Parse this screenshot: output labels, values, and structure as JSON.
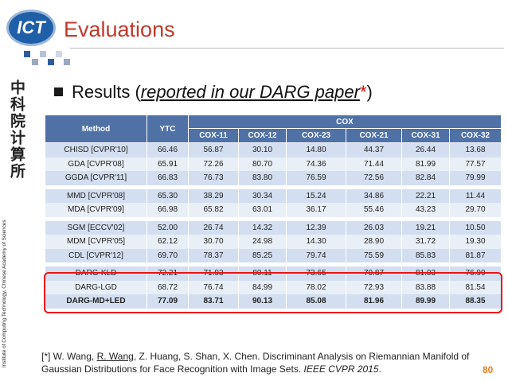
{
  "header": {
    "logo": "ICT",
    "title": "Evaluations"
  },
  "sidebar": {
    "chinese": "中科院计算所",
    "institute": "Institute of Computing Technology, Chinese Academy of Sciences"
  },
  "bullet": {
    "text": "Results (",
    "link": "reported in our DARG paper",
    "star": "*",
    "close": ")"
  },
  "table": {
    "header": [
      "Method",
      "YTC",
      "COX"
    ],
    "subheader": [
      "COX-11",
      "COX-12",
      "COX-23",
      "COX-21",
      "COX-31",
      "COX-32"
    ],
    "groups": [
      {
        "rows": [
          [
            "CHISD [CVPR'10]",
            "66.46",
            "56.87",
            "30.10",
            "14.80",
            "44.37",
            "26.44",
            "13.68"
          ],
          [
            "GDA [CVPR'08]",
            "65.91",
            "72.26",
            "80.70",
            "74.36",
            "71.44",
            "81.99",
            "77.57"
          ],
          [
            "GGDA [CVPR'11]",
            "66.83",
            "76.73",
            "83.80",
            "76.59",
            "72.56",
            "82.84",
            "79.99"
          ]
        ]
      },
      {
        "rows": [
          [
            "MMD [CVPR'08]",
            "65.30",
            "38.29",
            "30.34",
            "15.24",
            "34.86",
            "22.21",
            "11.44"
          ],
          [
            "MDA [CVPR'09]",
            "66.98",
            "65.82",
            "63.01",
            "36.17",
            "55.46",
            "43.23",
            "29.70"
          ]
        ]
      },
      {
        "rows": [
          [
            "SGM [ECCV'02]",
            "52.00",
            "26.74",
            "14.32",
            "12.39",
            "26.03",
            "19.21",
            "10.50"
          ],
          [
            "MDM [CVPR'05]",
            "62.12",
            "30.70",
            "24.98",
            "14.30",
            "28.90",
            "31.72",
            "19.30"
          ],
          [
            "CDL [CVPR'12]",
            "69.70",
            "78.37",
            "85.25",
            "79.74",
            "75.59",
            "85.83",
            "81.87"
          ]
        ]
      },
      {
        "rows": [
          [
            "DARG-KLD",
            "72.21",
            "71.93",
            "80.11",
            "73.65",
            "70.87",
            "81.03",
            "76.99"
          ],
          [
            "DARG-LGD",
            "68.72",
            "76.74",
            "84.99",
            "78.02",
            "72.93",
            "83.88",
            "81.54"
          ],
          [
            "DARG-MD+LED",
            "77.09",
            "83.71",
            "90.13",
            "85.08",
            "81.96",
            "89.99",
            "88.35"
          ]
        ]
      }
    ]
  },
  "footnote": {
    "p1": "[*] W. Wang, ",
    "p2": "R. Wang",
    "p3": ", Z. Huang, S. Shan, X. Chen. Discriminant Analysis on Riemannian Manifold of Gaussian Distributions for Face Recognition with Image Sets. ",
    "p4": "IEEE CVPR 2015",
    "p5": "."
  },
  "page_number": "80"
}
